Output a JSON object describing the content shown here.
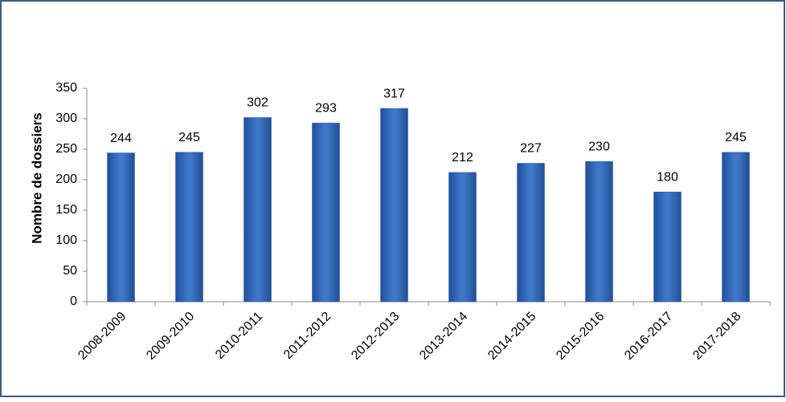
{
  "chart_data": {
    "type": "bar",
    "y_label": "Nombre de dossiers",
    "categories": [
      "2008-2009",
      "2009-2010",
      "2010-2011",
      "2011-2012",
      "2012-2013",
      "2013-2014",
      "2014-2015",
      "2015-2016",
      "2016-2017",
      "2017-2018"
    ],
    "values": [
      244,
      245,
      302,
      293,
      317,
      212,
      227,
      230,
      180,
      245
    ],
    "color": "#3f78c9",
    "ylim": [
      0,
      350
    ],
    "yticks": [
      0,
      50,
      100,
      150,
      200,
      250,
      300,
      350
    ],
    "grid": false
  }
}
